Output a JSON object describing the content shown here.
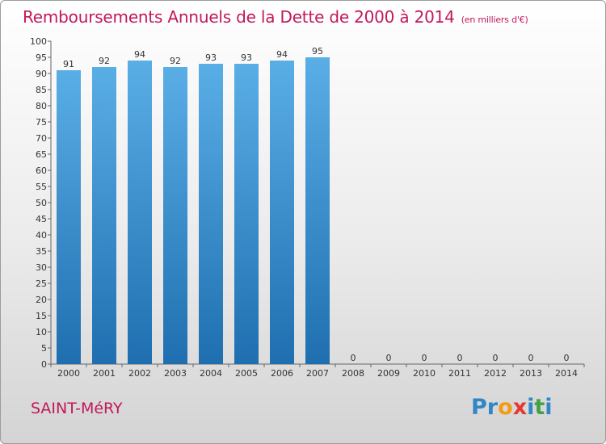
{
  "chart_data": {
    "type": "bar",
    "title": "Remboursements Annuels de la Dette de 2000 à 2014",
    "unit": "(en milliers d'€)",
    "categories": [
      "2000",
      "2001",
      "2002",
      "2003",
      "2004",
      "2005",
      "2006",
      "2007",
      "2008",
      "2009",
      "2010",
      "2011",
      "2012",
      "2013",
      "2014"
    ],
    "values": [
      91,
      92,
      94,
      92,
      93,
      93,
      94,
      95,
      0,
      0,
      0,
      0,
      0,
      0,
      0
    ],
    "ylim": [
      0,
      100
    ],
    "ytick_step": 5,
    "grid": false,
    "bar_color_top": "#5aaee6",
    "bar_color_bottom": "#1f6fb0"
  },
  "footer": {
    "town": "SAINT-MéRY",
    "logo_letters": [
      {
        "ch": "P",
        "color": "#2f87c8"
      },
      {
        "ch": "r",
        "color": "#2f87c8"
      },
      {
        "ch": "o",
        "color": "#f39c12"
      },
      {
        "ch": "x",
        "color": "#e53935"
      },
      {
        "ch": "i",
        "color": "#2f87c8"
      },
      {
        "ch": "t",
        "color": "#43a047"
      },
      {
        "ch": "i",
        "color": "#2f87c8"
      }
    ]
  }
}
